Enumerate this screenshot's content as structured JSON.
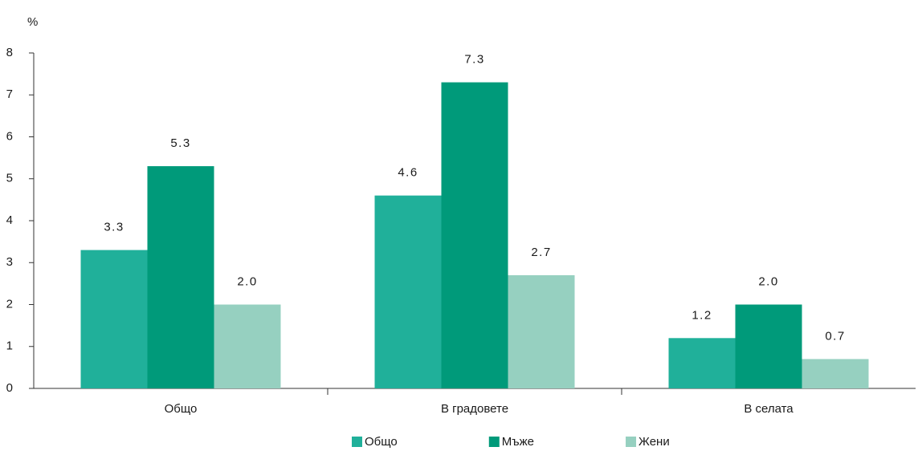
{
  "chart_data": {
    "type": "bar",
    "ylabel": "%",
    "categories": [
      "Общо",
      "В градовете",
      "В селата"
    ],
    "series": [
      {
        "name": "Общо",
        "color": "#20b09a",
        "values": [
          3.3,
          4.6,
          1.2
        ],
        "value_labels": [
          "3.3",
          "4.6",
          "1.2"
        ]
      },
      {
        "name": "Мъже",
        "color": "#009a7a",
        "values": [
          5.3,
          7.3,
          2.0
        ],
        "value_labels": [
          "5.3",
          "7.3",
          "2.0"
        ]
      },
      {
        "name": "Жени",
        "color": "#96d0c0",
        "values": [
          2.0,
          2.7,
          0.7
        ],
        "value_labels": [
          "2.0",
          "2.7",
          "0.7"
        ]
      }
    ],
    "ylim": [
      0,
      8
    ],
    "yticks": [
      0,
      1,
      2,
      3,
      4,
      5,
      6,
      7,
      8
    ],
    "grid": false,
    "legend": "bottom"
  }
}
